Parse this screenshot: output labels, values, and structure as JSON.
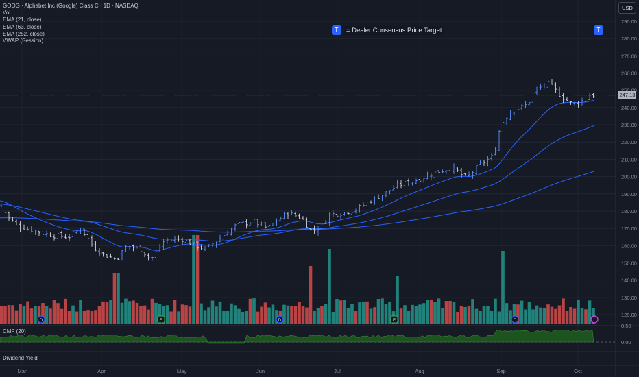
{
  "legend": {
    "symbol_line": "GOOG · Alphabet Inc (Google) Class C · 1D · NASDAQ",
    "vol": "Vol",
    "ema21": "EMA (21, close)",
    "ema63": "EMA (63, close)",
    "ema252": "EMA (252, close)",
    "vwap": "VWAP (Session)"
  },
  "currency_button": "USD",
  "price_target_badge": "T",
  "price_target_label": "= Dealer Consensus Price Target",
  "current_price_label": "247.13",
  "cmf_label": "CMF (20)",
  "dividend_yield_label": "Dividend Yield",
  "colors": {
    "background": "#161a25",
    "up_candle": "#5b8ff5",
    "down_candle": "#d1d4dc",
    "volume_up": "#26a69a",
    "volume_down": "#ef5350",
    "ema": "#2962ff",
    "cmf_fill": "#1e5a1e",
    "price_target": "#2962ff"
  },
  "chart_data": {
    "type": "candlestick",
    "title": "GOOG · Alphabet Inc (Google) Class C · 1D · NASDAQ",
    "ylim": [
      115,
      295
    ],
    "yticks": [
      120,
      130,
      140,
      150,
      160,
      170,
      180,
      190,
      200,
      210,
      220,
      230,
      240,
      250,
      260,
      270,
      280,
      290
    ],
    "xticks": [
      "Mar",
      "Apr",
      "May",
      "Jun",
      "Jul",
      "Aug",
      "Sep",
      "Oct"
    ],
    "grid": true,
    "series": [
      {
        "name": "price",
        "monthly_close_path": [
          {
            "x": "Mar",
            "y": 180
          },
          {
            "x": "Mar",
            "y": 170
          },
          {
            "x": "Apr",
            "y": 155
          },
          {
            "x": "Apr",
            "y": 157
          },
          {
            "x": "May",
            "y": 160
          },
          {
            "x": "May",
            "y": 167
          },
          {
            "x": "Jun",
            "y": 173
          },
          {
            "x": "Jun",
            "y": 180
          },
          {
            "x": "Jul",
            "y": 179
          },
          {
            "x": "Jul",
            "y": 193
          },
          {
            "x": "Aug",
            "y": 200
          },
          {
            "x": "Aug",
            "y": 206
          },
          {
            "x": "Sep",
            "y": 232
          },
          {
            "x": "Sep",
            "y": 253
          },
          {
            "x": "Oct",
            "y": 241
          },
          {
            "x": "Oct",
            "y": 247.13
          }
        ]
      }
    ],
    "current_price": 247.13,
    "cmf_yticks": [
      "0.50",
      "0.00"
    ]
  }
}
